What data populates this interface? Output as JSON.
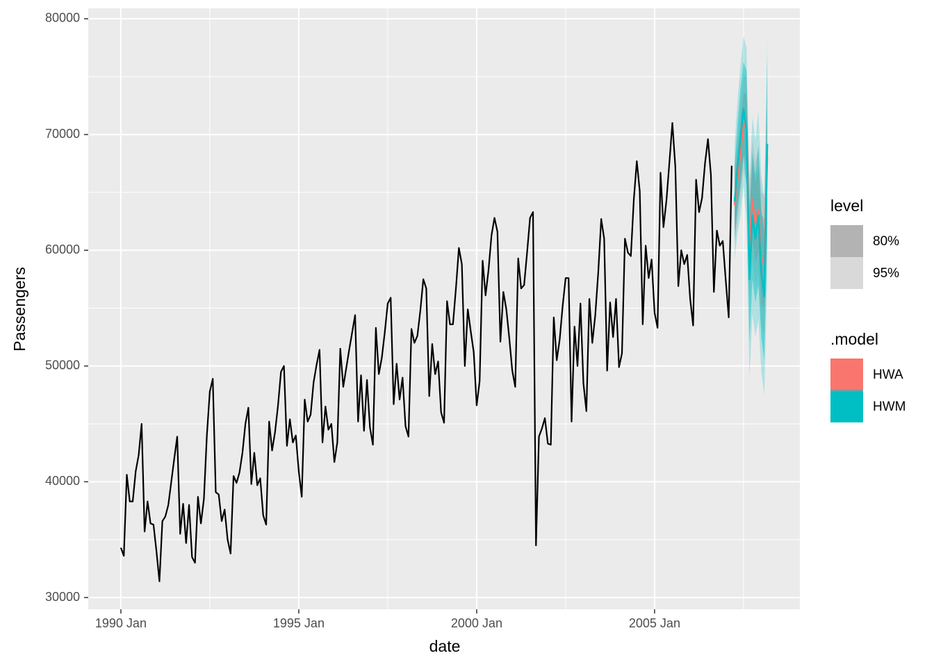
{
  "chart_data": {
    "type": "line",
    "x_label": "date",
    "y_label": "Passengers",
    "xlim": [
      "1989 Feb",
      "2009 Feb"
    ],
    "xticks": [
      "1990 Jan",
      "1995 Jan",
      "2000 Jan",
      "2005 Jan"
    ],
    "ylim": [
      28980,
      80900
    ],
    "yticks": [
      30000,
      40000,
      50000,
      60000,
      70000,
      80000
    ],
    "grid": true,
    "legend_position": "right",
    "level_legend": {
      "title": "level",
      "levels": [
        {
          "label": "80%",
          "color": "#b3b3b3"
        },
        {
          "label": "95%",
          "color": "#d9d9d9"
        }
      ]
    },
    "model_legend_title": ".model",
    "series": [
      {
        "color": "#000000",
        "x": [
          "1990 Jan",
          "1990 Feb",
          "1990 Mar",
          "1990 Apr",
          "1990 May",
          "1990 Jun",
          "1990 Jul",
          "1990 Aug",
          "1990 Sep",
          "1990 Oct",
          "1990 Nov",
          "1990 Dec",
          "1991 Jan",
          "1991 Feb",
          "1991 Mar",
          "1991 Apr",
          "1991 May",
          "1991 Jun",
          "1991 Jul",
          "1991 Aug",
          "1991 Sep",
          "1991 Oct",
          "1991 Nov",
          "1991 Dec",
          "1992 Jan",
          "1992 Feb",
          "1992 Mar",
          "1992 Apr",
          "1992 May",
          "1992 Jun",
          "1992 Jul",
          "1992 Aug",
          "1992 Sep",
          "1992 Oct",
          "1992 Nov",
          "1992 Dec",
          "1993 Jan",
          "1993 Feb",
          "1993 Mar",
          "1993 Apr",
          "1993 May",
          "1993 Jun",
          "1993 Jul",
          "1993 Aug",
          "1993 Sep",
          "1993 Oct",
          "1993 Nov",
          "1993 Dec",
          "1994 Jan",
          "1994 Feb",
          "1994 Mar",
          "1994 Apr",
          "1994 May",
          "1994 Jun",
          "1994 Jul",
          "1994 Aug",
          "1994 Sep",
          "1994 Oct",
          "1994 Nov",
          "1994 Dec",
          "1995 Jan",
          "1995 Feb",
          "1995 Mar",
          "1995 Apr",
          "1995 May",
          "1995 Jun",
          "1995 Jul",
          "1995 Aug",
          "1995 Sep",
          "1995 Oct",
          "1995 Nov",
          "1995 Dec",
          "1996 Jan",
          "1996 Feb",
          "1996 Mar",
          "1996 Apr",
          "1996 May",
          "1996 Jun",
          "1996 Jul",
          "1996 Aug",
          "1996 Sep",
          "1996 Oct",
          "1996 Nov",
          "1996 Dec",
          "1997 Jan",
          "1997 Feb",
          "1997 Mar",
          "1997 Apr",
          "1997 May",
          "1997 Jun",
          "1997 Jul",
          "1997 Aug",
          "1997 Sep",
          "1997 Oct",
          "1997 Nov",
          "1997 Dec",
          "1998 Jan",
          "1998 Feb",
          "1998 Mar",
          "1998 Apr",
          "1998 May",
          "1998 Jun",
          "1998 Jul",
          "1998 Aug",
          "1998 Sep",
          "1998 Oct",
          "1998 Nov",
          "1998 Dec",
          "1999 Jan",
          "1999 Feb",
          "1999 Mar",
          "1999 Apr",
          "1999 May",
          "1999 Jun",
          "1999 Jul",
          "1999 Aug",
          "1999 Sep",
          "1999 Oct",
          "1999 Nov",
          "1999 Dec",
          "2000 Jan",
          "2000 Feb",
          "2000 Mar",
          "2000 Apr",
          "2000 May",
          "2000 Jun",
          "2000 Jul",
          "2000 Aug",
          "2000 Sep",
          "2000 Oct",
          "2000 Nov",
          "2000 Dec",
          "2001 Jan",
          "2001 Feb",
          "2001 Mar",
          "2001 Apr",
          "2001 May",
          "2001 Jun",
          "2001 Jul",
          "2001 Aug",
          "2001 Sep",
          "2001 Oct",
          "2001 Nov",
          "2001 Dec",
          "2002 Jan",
          "2002 Feb",
          "2002 Mar",
          "2002 Apr",
          "2002 May",
          "2002 Jun",
          "2002 Jul",
          "2002 Aug",
          "2002 Sep",
          "2002 Oct",
          "2002 Nov",
          "2002 Dec",
          "2003 Jan",
          "2003 Feb",
          "2003 Mar",
          "2003 Apr",
          "2003 May",
          "2003 Jun",
          "2003 Jul",
          "2003 Aug",
          "2003 Sep",
          "2003 Oct",
          "2003 Nov",
          "2003 Dec",
          "2004 Jan",
          "2004 Feb",
          "2004 Mar",
          "2004 Apr",
          "2004 May",
          "2004 Jun",
          "2004 Jul",
          "2004 Aug",
          "2004 Sep",
          "2004 Oct",
          "2004 Nov",
          "2004 Dec",
          "2005 Jan",
          "2005 Feb",
          "2005 Mar",
          "2005 Apr",
          "2005 May",
          "2005 Jun",
          "2005 Jul",
          "2005 Aug",
          "2005 Sep",
          "2005 Oct",
          "2005 Nov",
          "2005 Dec",
          "2006 Jan",
          "2006 Feb",
          "2006 Mar",
          "2006 Apr",
          "2006 May",
          "2006 Jun",
          "2006 Jul",
          "2006 Aug",
          "2006 Sep",
          "2006 Oct",
          "2006 Nov",
          "2006 Dec",
          "2007 Jan",
          "2007 Feb",
          "2007 Mar"
        ],
        "values": [
          34300,
          33600,
          40600,
          38300,
          38300,
          40900,
          42300,
          45000,
          35700,
          38300,
          36400,
          36300,
          34000,
          31400,
          36600,
          37000,
          38000,
          40000,
          42000,
          43900,
          35500,
          38100,
          34700,
          38000,
          33500,
          33000,
          38700,
          36400,
          38500,
          44000,
          47800,
          48900,
          39100,
          38900,
          36600,
          37600,
          35000,
          33800,
          40500,
          39900,
          40800,
          42500,
          45000,
          46400,
          39800,
          42500,
          39700,
          40300,
          37100,
          36300,
          45200,
          42700,
          44300,
          46600,
          49500,
          50000,
          43100,
          45400,
          43400,
          44000,
          40900,
          38700,
          47100,
          45200,
          45800,
          48600,
          50100,
          51400,
          43400,
          46500,
          44500,
          45000,
          41700,
          43400,
          51500,
          48200,
          49800,
          51400,
          52900,
          54400,
          45200,
          49200,
          44400,
          48800,
          44700,
          43200,
          53300,
          49300,
          50700,
          52900,
          55400,
          55900,
          46700,
          50200,
          47100,
          49000,
          44800,
          43900,
          53200,
          52000,
          52600,
          54800,
          57500,
          56700,
          47400,
          51900,
          49300,
          50400,
          46000,
          45100,
          55600,
          53600,
          53600,
          56700,
          60200,
          58800,
          50000,
          54900,
          53000,
          51200,
          46600,
          48700,
          59100,
          56100,
          58300,
          61300,
          62800,
          61600,
          52100,
          56400,
          54900,
          52400,
          49600,
          48200,
          59300,
          56700,
          57000,
          59800,
          62800,
          63300,
          34500,
          43900,
          44600,
          45500,
          43300,
          43200,
          54200,
          50500,
          52300,
          55200,
          57600,
          57600,
          45200,
          53400,
          50000,
          55400,
          48500,
          46100,
          55800,
          52000,
          54400,
          58100,
          62700,
          61000,
          49600,
          55500,
          52500,
          55800,
          49900,
          51100,
          61000,
          59800,
          59500,
          64400,
          67700,
          65100,
          53600,
          60400,
          57600,
          59200,
          54600,
          53300,
          66700,
          62000,
          64300,
          67600,
          71000,
          67200,
          56900,
          60000,
          58800,
          59600,
          55800,
          53500,
          66100,
          63300,
          64500,
          67500,
          69600,
          66500,
          56400,
          61700,
          60400,
          60800,
          57400,
          54200,
          67300
        ]
      },
      {
        "name": "HWA",
        "color": "#F8766D",
        "x": [
          "2007 Apr",
          "2007 May",
          "2007 Jun",
          "2007 Jul",
          "2007 Aug",
          "2007 Sep",
          "2007 Oct",
          "2007 Nov",
          "2007 Dec",
          "2008 Jan",
          "2008 Feb",
          "2008 Mar"
        ],
        "values": [
          63900,
          66100,
          68500,
          70900,
          70600,
          60600,
          64400,
          62300,
          63500,
          59300,
          58800,
          68100
        ],
        "intervals": [
          {
            "lower": [
              61700,
              63800,
              66000,
              68300,
              67600,
              57400,
              61000,
              58800,
              59900,
              55500,
              54900,
              64000
            ],
            "upper": [
              66100,
              68400,
              71000,
              73500,
              73600,
              63800,
              67800,
              65800,
              67100,
              63100,
              62700,
              72200
            ]
          },
          {
            "lower": [
              60500,
              62500,
              64500,
              66800,
              66000,
              55700,
              59200,
              57000,
              58000,
              53500,
              52800,
              61800
            ],
            "upper": [
              67300,
              69700,
              72500,
              75000,
              75200,
              65500,
              69600,
              67600,
              69000,
              65100,
              64800,
              74400
            ]
          }
        ]
      },
      {
        "name": "HWM",
        "color": "#00BFC4",
        "x": [
          "2007 Apr",
          "2007 May",
          "2007 Jun",
          "2007 Jul",
          "2007 Aug",
          "2007 Sep",
          "2007 Oct",
          "2007 Nov",
          "2007 Dec",
          "2008 Jan",
          "2008 Feb",
          "2008 Mar"
        ],
        "values": [
          64200,
          67300,
          69800,
          72200,
          70500,
          57500,
          63000,
          61000,
          63000,
          58000,
          56000,
          69200
        ],
        "intervals": [
          {
            "lower": [
              61000,
              63500,
              65500,
              68000,
              65500,
              52000,
              57500,
              55500,
              57000,
              52500,
              50500,
              61500
            ],
            "upper": [
              67400,
              71000,
              74000,
              76300,
              75500,
              63000,
              68500,
              66500,
              69000,
              63500,
              61500,
              76800
            ]
          },
          {
            "lower": [
              59200,
              61500,
              63000,
              65500,
              62500,
              49000,
              54500,
              52500,
              54000,
              49500,
              47500,
              58000
            ],
            "upper": [
              69200,
              73000,
              76000,
              78500,
              77500,
              66000,
              71500,
              69500,
              72000,
              66500,
              64500,
              78000
            ]
          }
        ]
      }
    ]
  }
}
